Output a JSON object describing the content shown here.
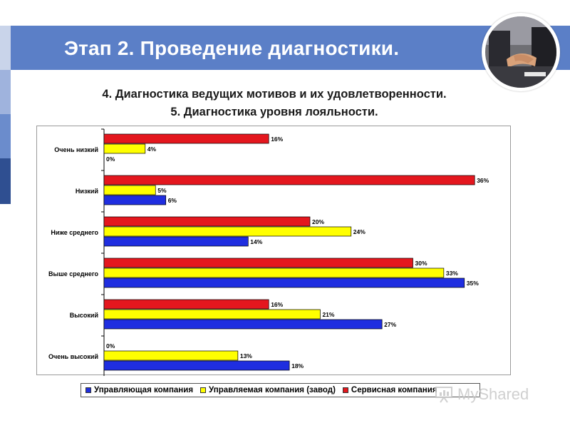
{
  "header": {
    "title": "Этап 2. Проведение диагностики.",
    "accent_color": "#5b7fc7"
  },
  "subtitle": {
    "line1": "4. Диагностика ведущих мотивов и их удовлетворенности.",
    "line2": "5. Диагностика уровня лояльности."
  },
  "watermark": {
    "text": "MyShared"
  },
  "legend": {
    "items": [
      {
        "label": "Управляющая компания",
        "color": "#1f2ee0"
      },
      {
        "label": "Управляемая компания (завод)",
        "color": "#ffff00"
      },
      {
        "label": "Сервисная компания",
        "color": "#e4171e"
      }
    ]
  },
  "chart_data": {
    "type": "bar",
    "orientation": "horizontal",
    "categories": [
      "Очень низкий",
      "Низкий",
      "Ниже среднего",
      "Выше среднего",
      "Высокий",
      "Очень высокий"
    ],
    "series": [
      {
        "name": "Сервисная компания",
        "color": "#e4171e",
        "values": [
          16,
          36,
          20,
          30,
          16,
          0
        ]
      },
      {
        "name": "Управляемая компания (завод)",
        "color": "#ffff00",
        "values": [
          4,
          5,
          24,
          33,
          21,
          13
        ]
      },
      {
        "name": "Управляющая компания",
        "color": "#1f2ee0",
        "values": [
          0,
          6,
          14,
          35,
          27,
          18
        ]
      }
    ],
    "value_suffix": "%",
    "xlim": [
      0,
      36
    ],
    "legend_position": "bottom",
    "grid": false
  }
}
